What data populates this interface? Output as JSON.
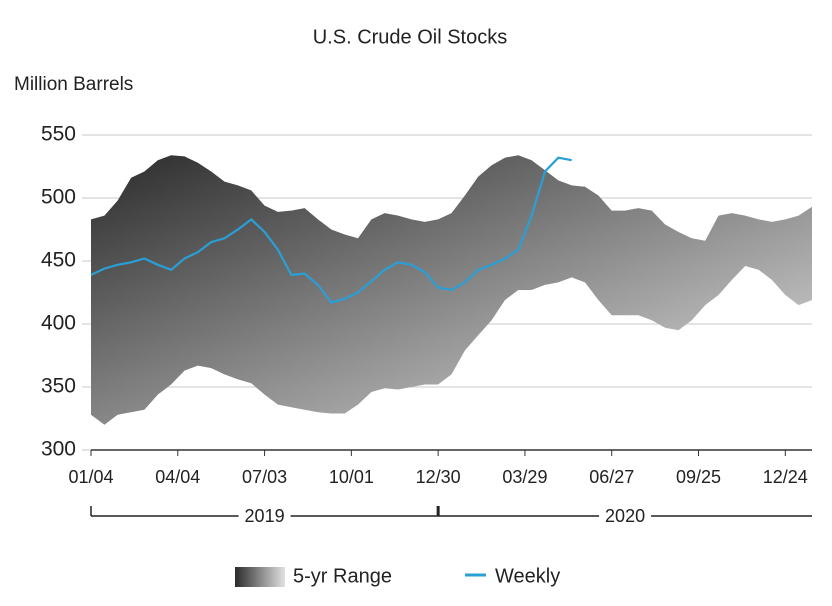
{
  "chart_data": {
    "type": "range_line",
    "title": "U.S. Crude Oil Stocks",
    "ylabel": "Million Barrels",
    "x": [
      0,
      2,
      4,
      6,
      8,
      10,
      12,
      14,
      16,
      18,
      20,
      22,
      24,
      26,
      28,
      30,
      32,
      34,
      36,
      38,
      40,
      42,
      44,
      46,
      48,
      50,
      52,
      54,
      56,
      58,
      60,
      62,
      64,
      66,
      68,
      70,
      72,
      74,
      76,
      78,
      80,
      82,
      84,
      86,
      88,
      90,
      92,
      94,
      96,
      98,
      100,
      102,
      104,
      106,
      108
    ],
    "xlim": [
      0,
      108
    ],
    "xticks": [
      {
        "value": 0,
        "label": "01/04"
      },
      {
        "value": 13,
        "label": "04/04"
      },
      {
        "value": 26,
        "label": "07/03"
      },
      {
        "value": 39,
        "label": "10/01"
      },
      {
        "value": 52,
        "label": "12/30"
      },
      {
        "value": 65,
        "label": "03/29"
      },
      {
        "value": 78,
        "label": "06/27"
      },
      {
        "value": 91,
        "label": "09/25"
      },
      {
        "value": 104,
        "label": "12/24"
      }
    ],
    "groups": [
      {
        "label": "2019",
        "start": 0,
        "end": 52
      },
      {
        "label": "2020",
        "start": 52,
        "end": 108
      }
    ],
    "ylim": [
      300,
      550
    ],
    "yticks": [
      300,
      350,
      400,
      450,
      500,
      550
    ],
    "grid": true,
    "series": [
      {
        "name": "5-yr Range",
        "color": [
          "#2b2b2b",
          "#e2e2e2"
        ],
        "high": [
          483,
          486,
          498,
          516,
          521,
          530,
          534,
          533,
          528,
          521,
          513,
          510,
          506,
          494,
          489,
          490,
          492,
          483,
          475,
          471,
          468,
          483,
          488,
          486,
          483,
          481,
          483,
          488,
          502,
          517,
          526,
          532,
          534,
          530,
          522,
          514,
          510,
          509,
          502,
          490,
          490,
          492,
          490,
          479,
          473,
          468,
          466,
          486,
          488,
          486,
          483,
          481,
          483,
          486,
          493
        ],
        "low": [
          328,
          320,
          328,
          330,
          332,
          344,
          352,
          363,
          367,
          365,
          360,
          356,
          353,
          344,
          336,
          334,
          332,
          330,
          329,
          329,
          336,
          346,
          349,
          348,
          350,
          352,
          352,
          360,
          379,
          391,
          403,
          419,
          427,
          427,
          431,
          433,
          437,
          433,
          419,
          407,
          407,
          407,
          403,
          397,
          395,
          403,
          415,
          423,
          435,
          446,
          443,
          435,
          423,
          415,
          419
        ]
      },
      {
        "name": "Weekly",
        "color": "#2a9fd6",
        "values": [
          439,
          444,
          447,
          449,
          452,
          447,
          443,
          452,
          457,
          465,
          468,
          475,
          483,
          473,
          459,
          439,
          440,
          431,
          417,
          420,
          425,
          434,
          443,
          449,
          447,
          441,
          429,
          427,
          433,
          443,
          447,
          452,
          459,
          486,
          521,
          532,
          530,
          null,
          null,
          null,
          null,
          null,
          null,
          null,
          null,
          null,
          null,
          null,
          null,
          null,
          null,
          null,
          null,
          null,
          null
        ]
      }
    ],
    "legend": "bottom"
  }
}
